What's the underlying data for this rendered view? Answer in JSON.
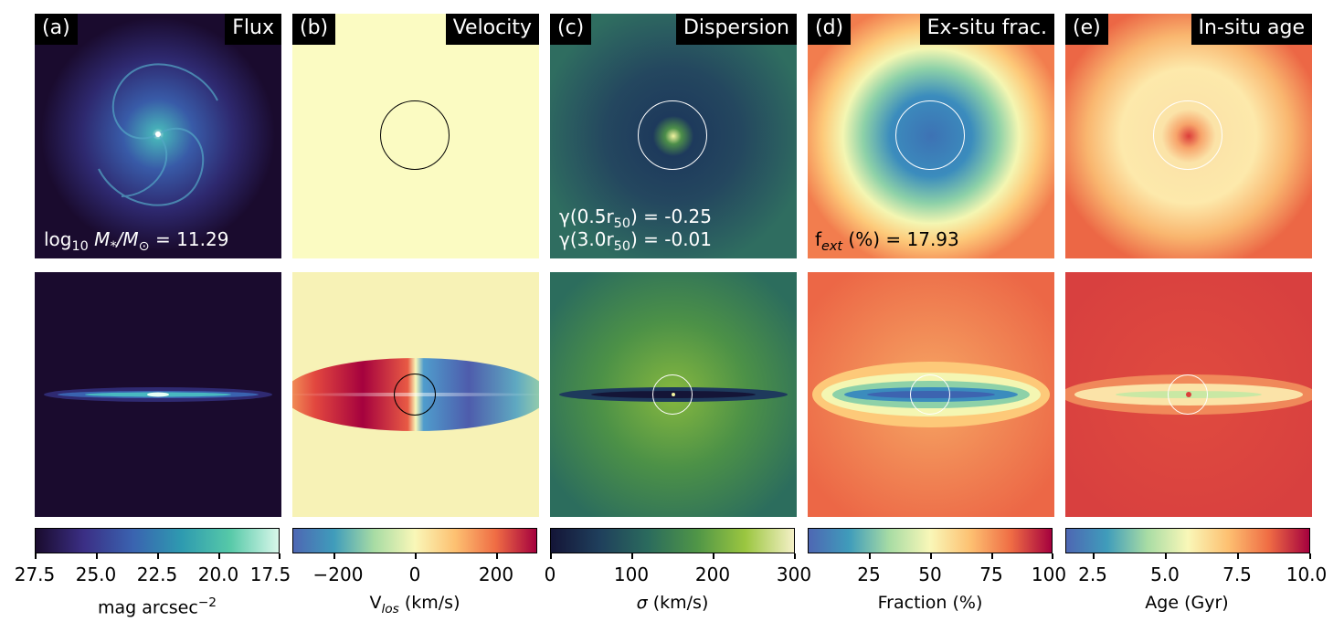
{
  "panels": {
    "a": {
      "tag": "(a)",
      "title": "Flux",
      "note_prefix": "log",
      "note_sub": "10",
      "note_rest": " M",
      "note_sub2": "*",
      "note_mid": "/M",
      "note_sub3": "⊙",
      "note_value": " = 11.29"
    },
    "b": {
      "tag": "(b)",
      "title": "Velocity"
    },
    "c": {
      "tag": "(c)",
      "title": "Dispersion",
      "note1_pre": "γ(0.5r",
      "note1_sub": "50",
      "note1_post": ") = -0.25",
      "note2_pre": "γ(3.0r",
      "note2_sub": "50",
      "note2_post": ") = -0.01"
    },
    "d": {
      "tag": "(d)",
      "title": "Ex-situ frac.",
      "note_pre": "f",
      "note_sub": "ext",
      "note_post": " (%) = 17.93"
    },
    "e": {
      "tag": "(e)",
      "title": "In-situ age"
    }
  },
  "colorbars": {
    "a": {
      "ticks": [
        "27.5",
        "25.0",
        "22.5",
        "20.0",
        "17.5"
      ],
      "label_pre": "mag arcsec",
      "label_sup": "−2",
      "colors": [
        "#1a0b2e",
        "#3b2f85",
        "#3a63b0",
        "#2e9ab0",
        "#56c9a8",
        "#d9f7ea"
      ]
    },
    "b": {
      "ticks": [
        "−200",
        "0",
        "200"
      ],
      "label_pre": "V",
      "label_sub": "los",
      "label_post": " (km/s)",
      "colors": [
        "#4e67b3",
        "#3f9cbb",
        "#a8dca4",
        "#f9f7b8",
        "#fdc071",
        "#ef6c44",
        "#a5013e"
      ]
    },
    "c": {
      "ticks": [
        "0",
        "100",
        "200",
        "300"
      ],
      "label_pre": "σ",
      "label_post": " (km/s)",
      "colors": [
        "#141537",
        "#1f3f5c",
        "#2b6b5d",
        "#4f9547",
        "#9bc640",
        "#f4f0c6"
      ]
    },
    "d": {
      "ticks": [
        "25",
        "50",
        "75",
        "100"
      ],
      "label_pre": "Fraction (%)",
      "colors": [
        "#4e67b3",
        "#3f9cbb",
        "#a8dca4",
        "#f9f7b8",
        "#fdc071",
        "#ef6c44",
        "#a5013e"
      ]
    },
    "e": {
      "ticks": [
        "2.5",
        "5.0",
        "7.5",
        "10.0"
      ],
      "label_pre": "Age (Gyr)",
      "colors": [
        "#4e67b3",
        "#3f9cbb",
        "#a8dca4",
        "#f9f7b8",
        "#fdc071",
        "#ef6c44",
        "#a5013e"
      ]
    }
  }
}
